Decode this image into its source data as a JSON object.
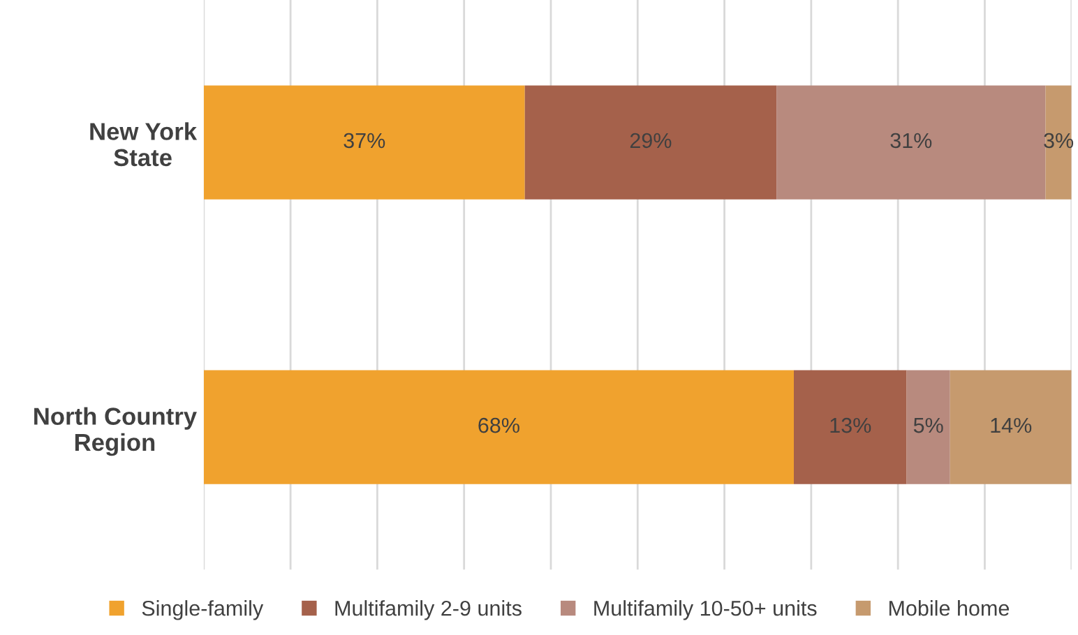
{
  "chart_data": {
    "type": "bar",
    "orientation": "horizontal",
    "stacked": true,
    "categories": [
      "New York\nState",
      "North Country\nRegion"
    ],
    "series": [
      {
        "name": "Single-family",
        "color": "#f0a22e",
        "values": [
          37,
          68
        ],
        "value_labels": [
          "37%",
          "68%"
        ]
      },
      {
        "name": "Multifamily 2-9 units",
        "color": "#a5614b",
        "values": [
          29,
          13
        ],
        "value_labels": [
          "29%",
          "13%"
        ]
      },
      {
        "name": "Multifamily 10-50+ units",
        "color": "#b88a7e",
        "values": [
          31,
          5
        ],
        "value_labels": [
          "31%",
          "5%"
        ]
      },
      {
        "name": "Mobile home",
        "color": "#c69a6e",
        "values": [
          3,
          14
        ],
        "value_labels": [
          "3%",
          "14%"
        ]
      }
    ],
    "xlim": [
      0,
      100
    ],
    "xticks": [
      {
        "value": 0,
        "label": null
      },
      {
        "value": 10,
        "label": null
      },
      {
        "value": 20,
        "label": null
      },
      {
        "value": 30,
        "label": null
      },
      {
        "value": 40,
        "label": null
      },
      {
        "value": 50,
        "label": null
      },
      {
        "value": 60,
        "label": null
      },
      {
        "value": 70,
        "label": null
      },
      {
        "value": 80,
        "label": null
      },
      {
        "value": 90,
        "label": null
      },
      {
        "value": 100,
        "label": null
      }
    ],
    "grid": "x",
    "legend": "bottom",
    "tick_labels": "y"
  }
}
